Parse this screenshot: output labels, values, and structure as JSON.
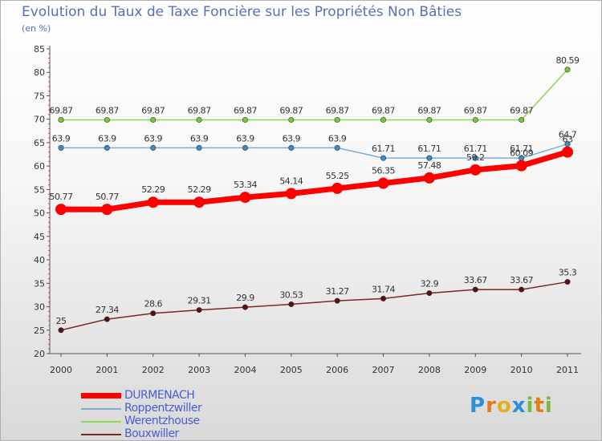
{
  "logo": {
    "text": "Proxiti",
    "letters": [
      "P",
      "r",
      "o",
      "x",
      "i",
      "t",
      "i"
    ]
  },
  "chart_data": {
    "type": "line",
    "title": "Evolution du Taux de Taxe Foncière sur les Propriétés Non Bâties",
    "subtitle": "(en %)",
    "xlabel": "",
    "ylabel": "",
    "categories": [
      "2000",
      "2001",
      "2002",
      "2003",
      "2004",
      "2005",
      "2006",
      "2007",
      "2008",
      "2009",
      "2010",
      "2011"
    ],
    "ylim": [
      20,
      85
    ],
    "yticks": [
      20,
      25,
      30,
      35,
      40,
      45,
      50,
      55,
      60,
      65,
      70,
      75,
      80,
      85
    ],
    "legend_position": "bottom-left",
    "series": [
      {
        "name": "Werentzhouse",
        "color": "#90d850",
        "marker_color": "#7ac83a",
        "values": [
          69.87,
          69.87,
          69.87,
          69.87,
          69.87,
          69.87,
          69.87,
          69.87,
          69.87,
          69.87,
          69.87,
          80.59
        ],
        "labels": [
          "69.87",
          "69.87",
          "69.87",
          "69.87",
          "69.87",
          "69.87",
          "69.87",
          "69.87",
          "69.87",
          "69.87",
          "69.87",
          "80.59"
        ]
      },
      {
        "name": "Roppentzwiller",
        "color": "#7aaed8",
        "marker_color": "#3d8ac8",
        "values": [
          63.9,
          63.9,
          63.9,
          63.9,
          63.9,
          63.9,
          63.9,
          61.71,
          61.71,
          61.71,
          61.71,
          64.7
        ],
        "labels": [
          "63.9",
          "63.9",
          "63.9",
          "63.9",
          "63.9",
          "63.9",
          "63.9",
          "61.71",
          "61.71",
          "61.71",
          "61.71",
          "64.7"
        ]
      },
      {
        "name": "DURMENACH",
        "color": "#ff0000",
        "marker_color": "#ff0000",
        "values": [
          50.77,
          50.77,
          52.29,
          52.29,
          53.34,
          54.14,
          55.25,
          56.35,
          57.48,
          59.2,
          60.09,
          63
        ],
        "labels": [
          "50.77",
          "50.77",
          "52.29",
          "52.29",
          "53.34",
          "54.14",
          "55.25",
          "56.35",
          "57.48",
          "59.2",
          "60.09",
          "63"
        ]
      },
      {
        "name": "Bouxwiller",
        "color": "#7a2828",
        "marker_color": "#5a1010",
        "values": [
          25,
          27.34,
          28.6,
          29.31,
          29.9,
          30.53,
          31.27,
          31.74,
          32.9,
          33.67,
          33.67,
          35.3
        ],
        "labels": [
          "25",
          "27.34",
          "28.6",
          "29.31",
          "29.9",
          "30.53",
          "31.27",
          "31.74",
          "32.9",
          "33.67",
          "33.67",
          "35.3"
        ]
      }
    ],
    "legend": [
      {
        "name": "DURMENACH",
        "color": "#ff0000",
        "thick": true
      },
      {
        "name": "Roppentzwiller",
        "color": "#7aaed8",
        "thick": false
      },
      {
        "name": "Werentzhouse",
        "color": "#90d850",
        "thick": false
      },
      {
        "name": "Bouxwiller",
        "color": "#7a2828",
        "thick": false
      }
    ]
  }
}
